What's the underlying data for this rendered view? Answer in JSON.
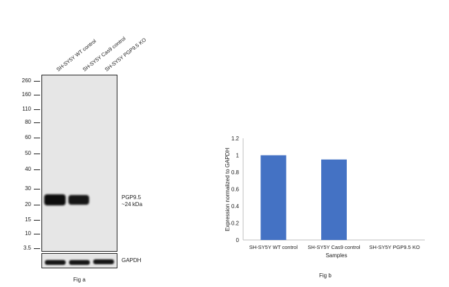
{
  "blot": {
    "lanes": [
      "SH-SY5Y WT control",
      "SH-SY5Y Cas9 control",
      "SH-SY5Y PGP9.5 KO"
    ],
    "mw_markers": [
      "260",
      "160",
      "110",
      "80",
      "60",
      "50",
      "40",
      "30",
      "20",
      "15",
      "10",
      "3.5"
    ],
    "target_label": "PGP9.5",
    "target_size": "~24 kDa",
    "loading_control": "GAPDH",
    "caption": "Fig a"
  },
  "chart_data": {
    "type": "bar",
    "categories": [
      "SH-SY5Y WT control",
      "SH-SY5Y Cas9 control",
      "SH-SY5Y PGP9.5 KO"
    ],
    "values": [
      1.0,
      0.95,
      0.0
    ],
    "xlabel": "Samples",
    "ylabel": "Expression normalized to GAPDH",
    "ylim": [
      0,
      1.2
    ],
    "yticks": [
      "0",
      "0.2",
      "0.4",
      "0.6",
      "0.8",
      "1",
      "1.2"
    ],
    "bar_color": "#4472c4",
    "grid": false,
    "caption": "Fig b"
  }
}
